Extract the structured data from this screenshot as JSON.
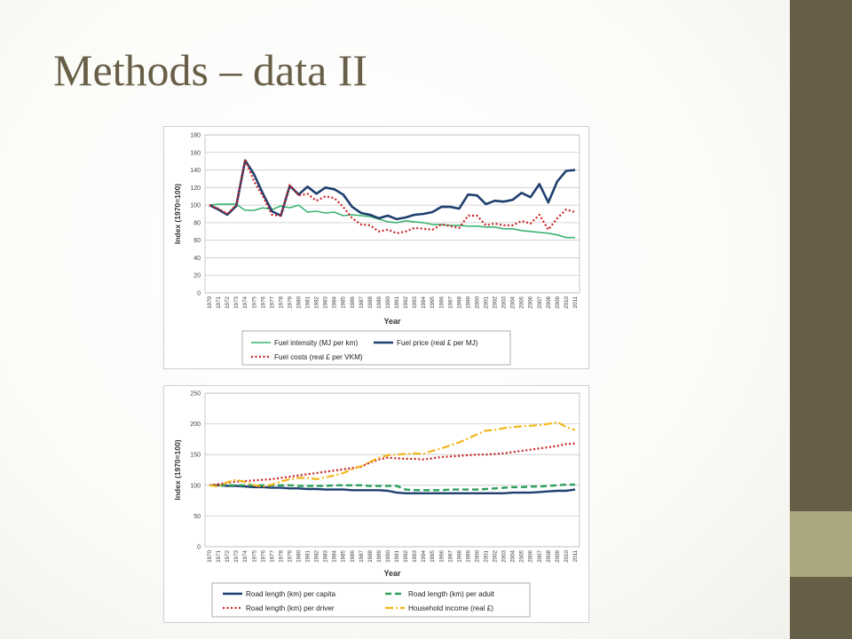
{
  "slide": {
    "title": "Methods – data II",
    "colors": {
      "title": "#695f48",
      "band_top": "#675e47",
      "band_mid": "#aaa67d",
      "band_bottom": "#675e47"
    }
  },
  "chart_data": [
    {
      "type": "line",
      "ylabel": "Index (1970=100)",
      "xlabel": "Year",
      "ylim": [
        0,
        180
      ],
      "ytick_step": 20,
      "grid": true,
      "legend_position": "bottom",
      "x": [
        "1970",
        "1971",
        "1972",
        "1973",
        "1974",
        "1975",
        "1976",
        "1977",
        "1978",
        "1979",
        "1980",
        "1981",
        "1982",
        "1983",
        "1984",
        "1985",
        "1986",
        "1987",
        "1988",
        "1989",
        "1990",
        "1991",
        "1992",
        "1993",
        "1994",
        "1995",
        "1996",
        "1997",
        "1998",
        "1999",
        "2000",
        "2001",
        "2002",
        "2003",
        "2004",
        "2005",
        "2006",
        "2007",
        "2008",
        "2009",
        "2010",
        "2011"
      ],
      "series": [
        {
          "name": "Fuel intensity (MJ per km)",
          "color": "#3cb371",
          "style": "solid",
          "width": 1.6,
          "values": [
            100,
            101,
            101,
            101,
            94,
            94,
            97,
            95,
            99,
            97,
            100,
            92,
            93,
            91,
            92,
            88,
            89,
            88,
            87,
            84,
            81,
            80,
            82,
            81,
            80,
            78,
            78,
            77,
            77,
            76,
            76,
            75,
            75,
            73,
            73,
            71,
            70,
            69,
            68,
            66,
            63,
            63
          ]
        },
        {
          "name": "Fuel price (real £ per MJ)",
          "color": "#1f3f6e",
          "style": "solid",
          "width": 2.6,
          "values": [
            100,
            95,
            89,
            99,
            151,
            135,
            113,
            93,
            88,
            122,
            112,
            121,
            113,
            120,
            118,
            112,
            98,
            91,
            89,
            85,
            88,
            84,
            86,
            89,
            90,
            92,
            98,
            98,
            96,
            112,
            111,
            101,
            105,
            104,
            106,
            114,
            109,
            124,
            103,
            127,
            139,
            140
          ]
        },
        {
          "name": "Fuel costs (real £ per VKM)",
          "color": "#cc2222",
          "style": "dotted",
          "width": 2.2,
          "values": [
            100,
            96,
            90,
            100,
            152,
            127,
            110,
            89,
            88,
            123,
            111,
            113,
            105,
            110,
            108,
            98,
            85,
            78,
            77,
            70,
            72,
            68,
            70,
            74,
            73,
            72,
            78,
            76,
            74,
            88,
            88,
            77,
            79,
            77,
            77,
            82,
            79,
            89,
            72,
            85,
            95,
            92
          ]
        }
      ]
    },
    {
      "type": "line",
      "ylabel": "Index (1970=100)",
      "xlabel": "Year",
      "ylim": [
        0,
        250
      ],
      "ytick_step": 50,
      "grid": true,
      "legend_position": "bottom",
      "x": [
        "1970",
        "1971",
        "1972",
        "1973",
        "1974",
        "1975",
        "1976",
        "1977",
        "1978",
        "1979",
        "1980",
        "1981",
        "1982",
        "1983",
        "1984",
        "1985",
        "1986",
        "1987",
        "1988",
        "1989",
        "1990",
        "1991",
        "1992",
        "1993",
        "1994",
        "1995",
        "1996",
        "1997",
        "1998",
        "1999",
        "2000",
        "2001",
        "2002",
        "2003",
        "2004",
        "2005",
        "2006",
        "2007",
        "2008",
        "2009",
        "2010",
        "2011"
      ],
      "series": [
        {
          "name": "Road length (km) per capita",
          "color": "#1f3f6e",
          "style": "solid",
          "width": 2.4,
          "values": [
            100,
            100,
            99,
            99,
            98,
            97,
            97,
            96,
            96,
            95,
            95,
            94,
            94,
            93,
            93,
            93,
            92,
            92,
            92,
            92,
            91,
            88,
            87,
            87,
            87,
            87,
            87,
            87,
            87,
            87,
            87,
            87,
            87,
            87,
            88,
            88,
            88,
            89,
            90,
            91,
            91,
            93
          ]
        },
        {
          "name": "Road length (km) per adult",
          "color": "#2aa05a",
          "style": "dashed",
          "width": 2.4,
          "values": [
            100,
            100,
            100,
            100,
            100,
            100,
            100,
            100,
            100,
            100,
            99,
            99,
            99,
            99,
            100,
            100,
            100,
            100,
            99,
            99,
            99,
            99,
            93,
            92,
            92,
            92,
            92,
            93,
            93,
            93,
            93,
            94,
            95,
            96,
            97,
            97,
            98,
            98,
            99,
            100,
            101,
            101
          ]
        },
        {
          "name": "Road length (km) per driver",
          "color": "#cc2222",
          "style": "dotted",
          "width": 2.2,
          "values": [
            100,
            102,
            104,
            106,
            107,
            108,
            109,
            110,
            112,
            114,
            116,
            118,
            120,
            122,
            124,
            126,
            128,
            130,
            137,
            142,
            145,
            144,
            143,
            143,
            142,
            144,
            146,
            147,
            148,
            149,
            150,
            150,
            151,
            152,
            154,
            156,
            158,
            160,
            162,
            164,
            167,
            168
          ]
        },
        {
          "name": "Household income (real £)",
          "color": "#f2b619",
          "style": "dashdot",
          "width": 2.2,
          "values": [
            100,
            98,
            105,
            109,
            105,
            100,
            98,
            101,
            106,
            110,
            112,
            112,
            110,
            113,
            116,
            120,
            126,
            131,
            138,
            145,
            149,
            150,
            151,
            152,
            151,
            156,
            160,
            165,
            170,
            176,
            183,
            189,
            190,
            193,
            195,
            196,
            197,
            198,
            200,
            203,
            195,
            190
          ]
        }
      ]
    }
  ]
}
